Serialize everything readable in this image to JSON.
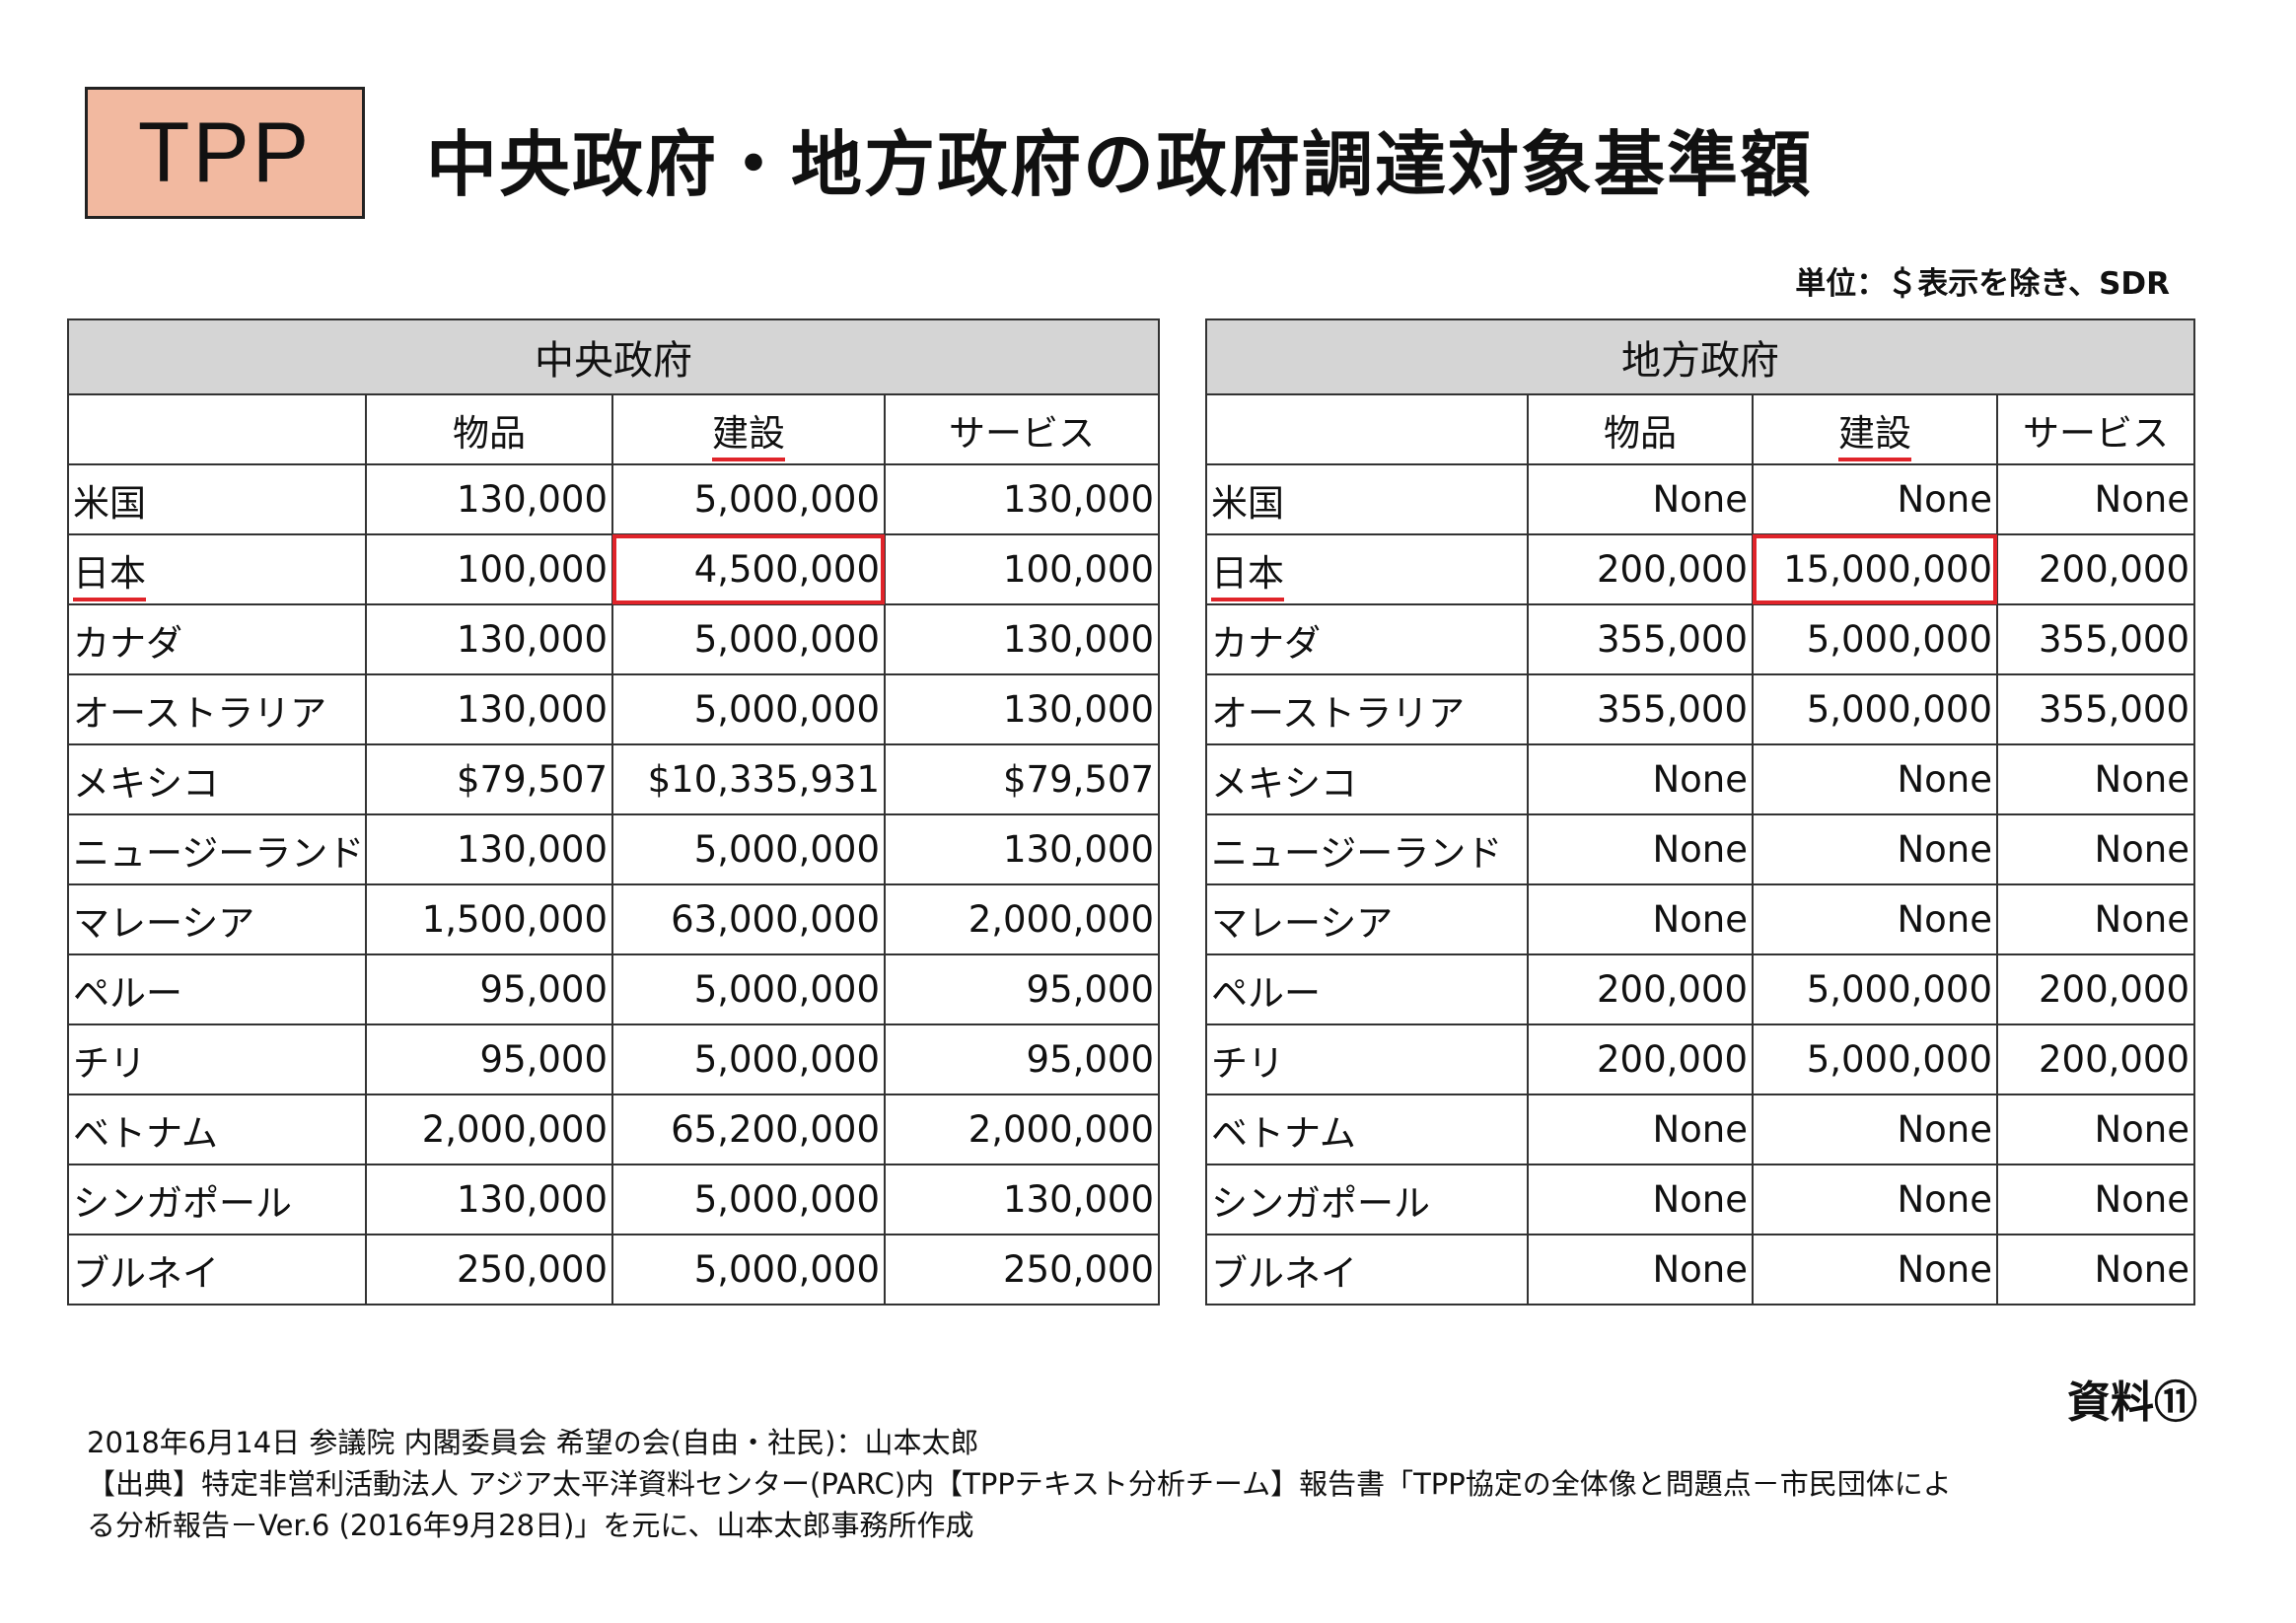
{
  "header": {
    "badge": "TPP",
    "title": "中央政府・地方政府の政府調達対象基準額",
    "unit_note": "単位：＄表示を除き、SDR"
  },
  "central": {
    "title": "中央政府",
    "columns": [
      "物品",
      "建設",
      "サービス"
    ],
    "rows": [
      {
        "country": "米国",
        "goods": "130,000",
        "construction": "5,000,000",
        "services": "130,000"
      },
      {
        "country": "日本",
        "goods": "100,000",
        "construction": "4,500,000",
        "services": "100,000"
      },
      {
        "country": "カナダ",
        "goods": "130,000",
        "construction": "5,000,000",
        "services": "130,000"
      },
      {
        "country": "オーストラリア",
        "goods": "130,000",
        "construction": "5,000,000",
        "services": "130,000"
      },
      {
        "country": "メキシコ",
        "goods": "$79,507",
        "construction": "$10,335,931",
        "services": "$79,507"
      },
      {
        "country": "ニュージーランド",
        "goods": "130,000",
        "construction": "5,000,000",
        "services": "130,000"
      },
      {
        "country": "マレーシア",
        "goods": "1,500,000",
        "construction": "63,000,000",
        "services": "2,000,000"
      },
      {
        "country": "ペルー",
        "goods": "95,000",
        "construction": "5,000,000",
        "services": "95,000"
      },
      {
        "country": "チリ",
        "goods": "95,000",
        "construction": "5,000,000",
        "services": "95,000"
      },
      {
        "country": "ベトナム",
        "goods": "2,000,000",
        "construction": "65,200,000",
        "services": "2,000,000"
      },
      {
        "country": "シンガポール",
        "goods": "130,000",
        "construction": "5,000,000",
        "services": "130,000"
      },
      {
        "country": "ブルネイ",
        "goods": "250,000",
        "construction": "5,000,000",
        "services": "250,000"
      }
    ]
  },
  "local": {
    "title": "地方政府",
    "columns": [
      "物品",
      "建設",
      "サービス"
    ],
    "rows": [
      {
        "country": "米国",
        "goods": "None",
        "construction": "None",
        "services": "None"
      },
      {
        "country": "日本",
        "goods": "200,000",
        "construction": "15,000,000",
        "services": "200,000"
      },
      {
        "country": "カナダ",
        "goods": "355,000",
        "construction": "5,000,000",
        "services": "355,000"
      },
      {
        "country": "オーストラリア",
        "goods": "355,000",
        "construction": "5,000,000",
        "services": "355,000"
      },
      {
        "country": "メキシコ",
        "goods": "None",
        "construction": "None",
        "services": "None"
      },
      {
        "country": "ニュージーランド",
        "goods": "None",
        "construction": "None",
        "services": "None"
      },
      {
        "country": "マレーシア",
        "goods": "None",
        "construction": "None",
        "services": "None"
      },
      {
        "country": "ペルー",
        "goods": "200,000",
        "construction": "5,000,000",
        "services": "200,000"
      },
      {
        "country": "チリ",
        "goods": "200,000",
        "construction": "5,000,000",
        "services": "200,000"
      },
      {
        "country": "ベトナム",
        "goods": "None",
        "construction": "None",
        "services": "None"
      },
      {
        "country": "シンガポール",
        "goods": "None",
        "construction": "None",
        "services": "None"
      },
      {
        "country": "ブルネイ",
        "goods": "None",
        "construction": "None",
        "services": "None"
      }
    ]
  },
  "doc_label": "資料⑪",
  "footer": {
    "line1": "2018年6月14日 参議院 内閣委員会 希望の会(自由・社民)：山本太郎",
    "line2": "【出典】特定非営利活動法人 アジア太平洋資料センター(PARC)内【TPPテキスト分析チーム】報告書「TPP協定の全体像と問題点－市民団体によ",
    "line3": "る分析報告－Ver.6 (2016年9月28日)」を元に、山本太郎事務所作成"
  },
  "colors": {
    "badge_bg": "#f2b9a0",
    "header_bg": "#d5d5d5",
    "highlight": "#e0242a"
  }
}
